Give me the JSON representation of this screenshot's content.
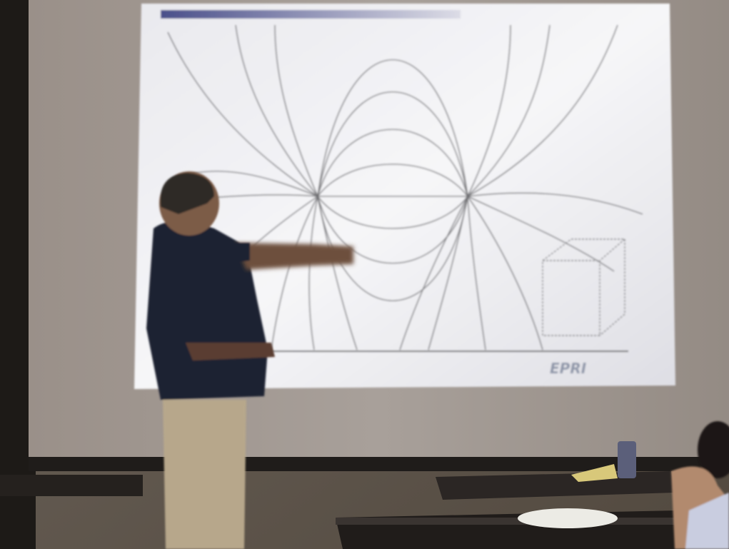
{
  "slide": {
    "logo": "EPRI"
  }
}
